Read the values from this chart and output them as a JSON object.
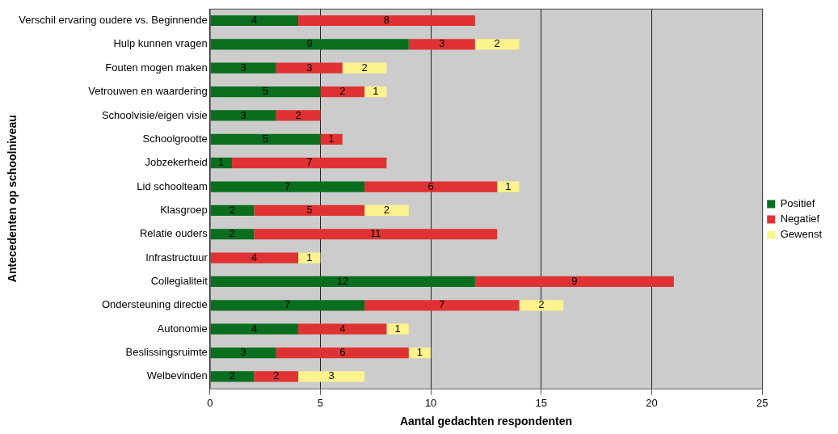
{
  "chart_data": {
    "type": "bar",
    "orientation": "horizontal",
    "stacked": true,
    "xlabel": "Aantal gedachten respondenten",
    "ylabel": "Antecedenten op schoolniveau",
    "categories": [
      "Verschil ervaring oudere vs. Beginnende",
      "Hulp kunnen vragen",
      "Fouten mogen maken",
      "Vetrouwen en waardering",
      "Schoolvisie/eigen visie",
      "Schoolgrootte",
      "Jobzekerheid",
      "Lid schoolteam",
      "Klasgroep",
      "Relatie ouders",
      "Infrastructuur",
      "Collegialiteit",
      "Ondersteuning directie",
      "Autonomie",
      "Beslissingsruimte",
      "Welbevinden"
    ],
    "series": [
      {
        "name": "Positief",
        "color": "#0a6e1e",
        "values": [
          4,
          9,
          3,
          5,
          3,
          5,
          1,
          7,
          2,
          2,
          null,
          12,
          7,
          4,
          3,
          2
        ]
      },
      {
        "name": "Negatief",
        "color": "#e03232",
        "values": [
          8,
          3,
          3,
          2,
          2,
          1,
          7,
          6,
          5,
          11,
          4,
          9,
          7,
          4,
          6,
          2
        ]
      },
      {
        "name": "Gewenst",
        "color": "#fdf38e",
        "values": [
          null,
          2,
          2,
          1,
          null,
          null,
          null,
          1,
          2,
          null,
          1,
          null,
          2,
          1,
          1,
          3
        ]
      }
    ],
    "xlim": [
      0,
      25
    ],
    "xticks": [
      0,
      5,
      10,
      15,
      20,
      25
    ],
    "grid": "x",
    "legend": "right",
    "data_labels": true
  }
}
